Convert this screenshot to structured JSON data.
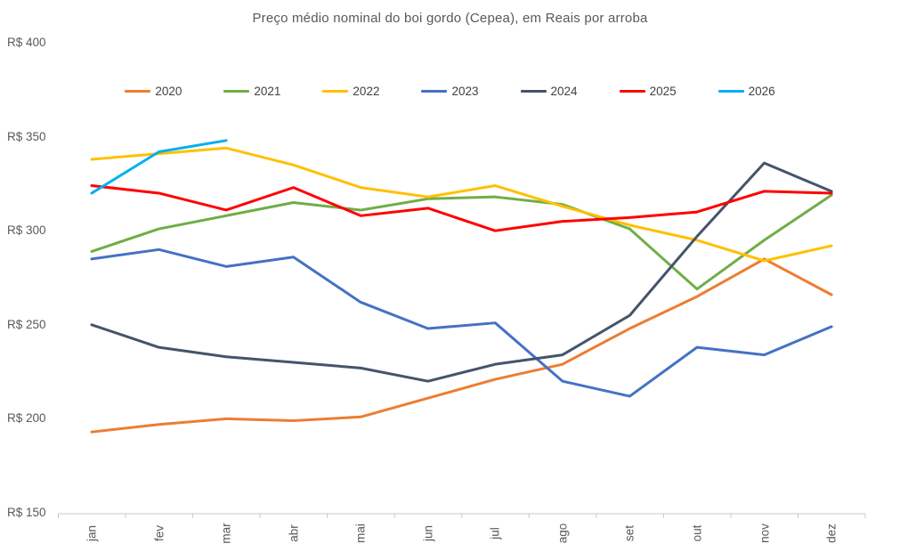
{
  "title": "Preço médio nominal do boi gordo (Cepea), em Reais por arroba",
  "chart_data": {
    "type": "line",
    "x": [
      "jan",
      "fev",
      "mar",
      "abr",
      "mai",
      "jun",
      "jul",
      "ago",
      "set",
      "out",
      "nov",
      "dez"
    ],
    "y_axis": {
      "tick_labels": [
        "R$ 400",
        "R$ 350",
        "R$ 300",
        "R$ 250",
        "R$ 200",
        "R$ 150"
      ],
      "tick_values": [
        400,
        350,
        300,
        250,
        200,
        150
      ],
      "min": 150,
      "max": 400,
      "unit": "Reais por arroba"
    },
    "grid": false,
    "legend_position": "top",
    "series": [
      {
        "name": "2020",
        "color": "#ED7D31",
        "values": [
          193,
          197,
          200,
          199,
          201,
          211,
          221,
          229,
          248,
          265,
          285,
          266
        ]
      },
      {
        "name": "2021",
        "color": "#70AD47",
        "values": [
          289,
          301,
          308,
          315,
          311,
          317,
          318,
          314,
          301,
          269,
          295,
          319
        ]
      },
      {
        "name": "2022",
        "color": "#FFC000",
        "values": [
          338,
          341,
          344,
          335,
          323,
          318,
          324,
          313,
          303,
          295,
          284,
          292
        ]
      },
      {
        "name": "2023",
        "color": "#4472C4",
        "values": [
          285,
          290,
          281,
          286,
          262,
          248,
          251,
          220,
          212,
          238,
          234,
          249
        ]
      },
      {
        "name": "2024",
        "color": "#44546A",
        "values": [
          250,
          238,
          233,
          230,
          227,
          220,
          229,
          234,
          255,
          297,
          336,
          321
        ]
      },
      {
        "name": "2025",
        "color": "#FF0000",
        "values": [
          324,
          320,
          311,
          323,
          308,
          312,
          300,
          305,
          307,
          310,
          321,
          320
        ]
      },
      {
        "name": "2026",
        "color": "#00B0F0",
        "values": [
          320,
          342,
          348,
          null,
          null,
          null,
          null,
          null,
          null,
          null,
          null,
          null
        ]
      }
    ]
  }
}
